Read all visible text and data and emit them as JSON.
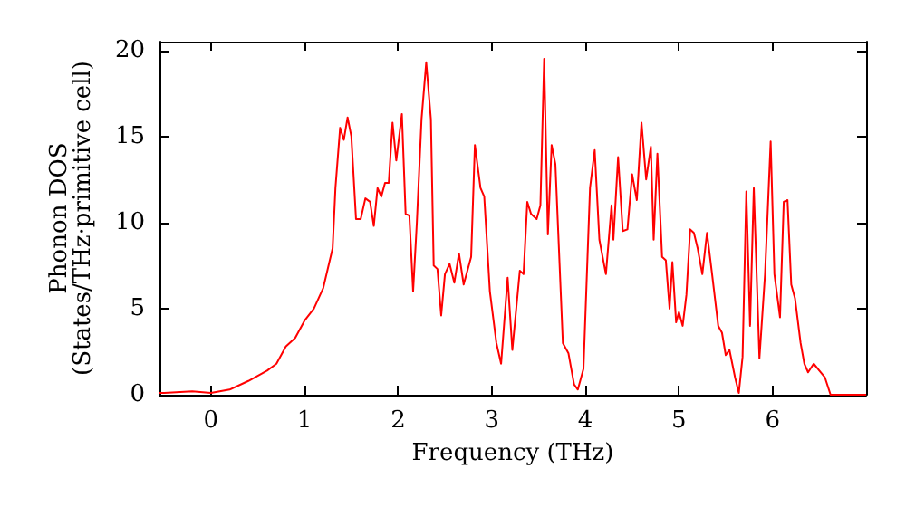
{
  "chart_data": {
    "type": "line",
    "xlabel": "Frequency (THz)",
    "ylabel": "Phonon DOS\n(States/THz·primitive cell)",
    "xlim": [
      -0.55,
      7
    ],
    "ylim": [
      0,
      20.5
    ],
    "xticks": [
      0,
      1,
      2,
      3,
      4,
      5,
      6
    ],
    "yticks": [
      0,
      5,
      10,
      15,
      20
    ],
    "grid": false,
    "marker": "none",
    "line_style": "solid",
    "series": [
      {
        "color": "#ff0000",
        "x": [
          -0.55,
          -0.5,
          -0.2,
          0,
          0.2,
          0.4,
          0.6,
          0.7,
          0.8,
          0.9,
          1.0,
          1.1,
          1.2,
          1.3,
          1.33,
          1.38,
          1.42,
          1.46,
          1.5,
          1.55,
          1.6,
          1.65,
          1.7,
          1.74,
          1.78,
          1.82,
          1.86,
          1.9,
          1.94,
          1.98,
          2.04,
          2.08,
          2.12,
          2.16,
          2.2,
          2.25,
          2.3,
          2.35,
          2.38,
          2.42,
          2.46,
          2.5,
          2.55,
          2.6,
          2.65,
          2.7,
          2.78,
          2.82,
          2.88,
          2.92,
          2.98,
          3.05,
          3.1,
          3.17,
          3.22,
          3.3,
          3.34,
          3.38,
          3.42,
          3.48,
          3.52,
          3.56,
          3.6,
          3.64,
          3.68,
          3.76,
          3.82,
          3.88,
          3.92,
          3.98,
          4.05,
          4.1,
          4.15,
          4.22,
          4.28,
          4.3,
          4.35,
          4.4,
          4.45,
          4.5,
          4.55,
          4.6,
          4.65,
          4.7,
          4.73,
          4.77,
          4.82,
          4.86,
          4.9,
          4.93,
          4.97,
          5.0,
          5.04,
          5.08,
          5.12,
          5.16,
          5.2,
          5.25,
          5.3,
          5.35,
          5.42,
          5.46,
          5.5,
          5.54,
          5.6,
          5.64,
          5.68,
          5.72,
          5.76,
          5.8,
          5.86,
          5.92,
          5.98,
          6.02,
          6.08,
          6.12,
          6.16,
          6.2,
          6.24,
          6.3,
          6.34,
          6.38,
          6.44,
          6.5,
          6.56,
          6.62,
          7
        ],
        "values": [
          0.1,
          0.1,
          0.2,
          0.1,
          0.3,
          0.8,
          1.4,
          1.8,
          2.8,
          3.3,
          4.3,
          5,
          6.2,
          8.5,
          12,
          15.5,
          14.8,
          16.1,
          15,
          10.2,
          10.2,
          11.4,
          11.2,
          9.8,
          12,
          11.5,
          12.3,
          12.3,
          15.8,
          13.6,
          16.3,
          10.5,
          10.4,
          6,
          10,
          16,
          19.3,
          16,
          7.5,
          7.3,
          4.6,
          7,
          7.6,
          6.5,
          8.2,
          6.4,
          8,
          14.5,
          12,
          11.5,
          6,
          3,
          1.8,
          6.8,
          2.6,
          7.2,
          7,
          11.2,
          10.5,
          10.2,
          11,
          19.5,
          9.3,
          14.5,
          13.4,
          3,
          2.4,
          0.6,
          0.3,
          1.5,
          12,
          14.2,
          9,
          7,
          11,
          9,
          13.8,
          9.5,
          9.6,
          12.8,
          11.3,
          15.8,
          12.5,
          14.4,
          9,
          14,
          8,
          7.8,
          5,
          7.7,
          4.2,
          4.8,
          4,
          5.8,
          9.6,
          9.4,
          8.5,
          7,
          9.4,
          7.2,
          4,
          3.6,
          2.3,
          2.6,
          1,
          0.1,
          2.2,
          11.8,
          4,
          12,
          2.1,
          7,
          14.7,
          7,
          4.5,
          11.2,
          11.3,
          6.4,
          5.6,
          3,
          1.8,
          1.3,
          1.8,
          1.4,
          1,
          0,
          0
        ]
      }
    ]
  }
}
